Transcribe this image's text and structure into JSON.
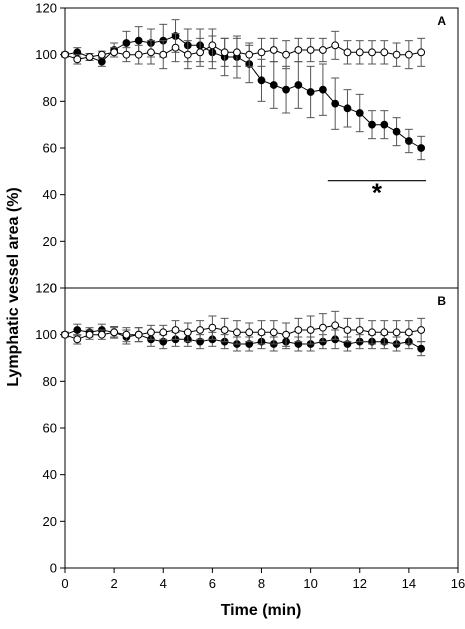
{
  "figure": {
    "ylabel": "Lymphatic vessel area (%)",
    "xlabel": "Time (min)"
  },
  "chart_data": [
    {
      "type": "line",
      "panel_label": "A",
      "xlim": [
        0,
        16
      ],
      "ylim": [
        0,
        120
      ],
      "xticks": [
        "0",
        "2",
        "4",
        "6",
        "8",
        "10",
        "12",
        "14",
        "16"
      ],
      "yticks": [
        "0",
        "20",
        "40",
        "60",
        "80",
        "100",
        "120"
      ],
      "x": [
        0,
        0.5,
        1,
        1.5,
        2,
        2.5,
        3,
        3.5,
        4,
        4.5,
        5,
        5.5,
        6,
        6.5,
        7,
        7.5,
        8,
        8.5,
        9,
        9.5,
        10,
        10.5,
        11,
        11.5,
        12,
        12.5,
        13,
        13.5,
        14,
        14.5
      ],
      "series": [
        {
          "marker": "filled-circle",
          "color": "#000000",
          "values": [
            100,
            101,
            99,
            97,
            102,
            105,
            106,
            105,
            106,
            108,
            104,
            104,
            101,
            99,
            99,
            96,
            89,
            87,
            85,
            87,
            84,
            85,
            79,
            77,
            75,
            70,
            70,
            67,
            63,
            60
          ],
          "errors": [
            0.5,
            2,
            1.5,
            2,
            3,
            5,
            6,
            6,
            7,
            7,
            7,
            7,
            7,
            8,
            9,
            8,
            9,
            10,
            10,
            10,
            11,
            11,
            11,
            8,
            8,
            6,
            6,
            6,
            5,
            5
          ]
        },
        {
          "marker": "open-circle",
          "color": "#000000",
          "values": [
            100,
            98,
            99,
            100,
            101,
            100,
            100,
            101,
            100,
            103,
            100,
            101,
            104,
            101,
            101,
            100,
            101,
            102,
            100,
            102,
            102,
            102,
            104,
            101,
            101,
            101,
            101,
            100,
            100,
            101
          ],
          "errors": [
            1,
            2,
            1.5,
            1.5,
            2,
            3,
            4,
            5,
            6,
            6,
            6,
            6,
            7,
            6,
            6,
            5,
            6,
            5,
            6,
            5,
            5,
            5,
            6,
            5,
            5,
            5,
            5,
            5,
            6,
            6
          ]
        }
      ],
      "annotation": {
        "type": "significance",
        "symbol": "*",
        "x_range": [
          10.7,
          14.7
        ],
        "y": 46
      }
    },
    {
      "type": "line",
      "panel_label": "B",
      "xlim": [
        0,
        16
      ],
      "ylim": [
        0,
        120
      ],
      "xticks": [
        "0",
        "2",
        "4",
        "6",
        "8",
        "10",
        "12",
        "14",
        "16"
      ],
      "yticks": [
        "0",
        "20",
        "40",
        "60",
        "80",
        "100",
        "120"
      ],
      "x": [
        0,
        0.5,
        1,
        1.5,
        2,
        2.5,
        3,
        3.5,
        4,
        4.5,
        5,
        5.5,
        6,
        6.5,
        7,
        7.5,
        8,
        8.5,
        9,
        9.5,
        10,
        10.5,
        11,
        11.5,
        12,
        12.5,
        13,
        13.5,
        14,
        14.5
      ],
      "series": [
        {
          "marker": "filled-circle",
          "color": "#000000",
          "values": [
            100,
            102,
            101,
            102,
            101,
            99,
            100,
            98,
            97,
            98,
            98,
            97,
            98,
            97,
            96,
            96,
            97,
            96,
            97,
            96,
            96,
            97,
            98,
            96,
            97,
            97,
            97,
            96,
            97,
            94
          ],
          "errors": [
            1,
            2.5,
            2,
            2.5,
            2.5,
            3,
            3,
            3,
            3,
            3,
            3,
            3,
            3,
            3,
            3,
            3,
            3,
            3,
            3,
            3,
            3,
            3,
            4,
            3,
            3,
            3,
            3,
            3,
            3,
            3
          ]
        },
        {
          "marker": "open-circle",
          "color": "#000000",
          "values": [
            100,
            98,
            100,
            100,
            101,
            100,
            100,
            101,
            101,
            102,
            101,
            102,
            103,
            102,
            101,
            101,
            101,
            101,
            100,
            102,
            102,
            103,
            104,
            102,
            102,
            101,
            101,
            101,
            101,
            102
          ],
          "errors": [
            1,
            2,
            2,
            2,
            2,
            3,
            3,
            3,
            3,
            4,
            4,
            4,
            5,
            5,
            5,
            4,
            5,
            5,
            5,
            5,
            6,
            6,
            6,
            5,
            5,
            5,
            5,
            5,
            5,
            5
          ]
        }
      ]
    }
  ]
}
